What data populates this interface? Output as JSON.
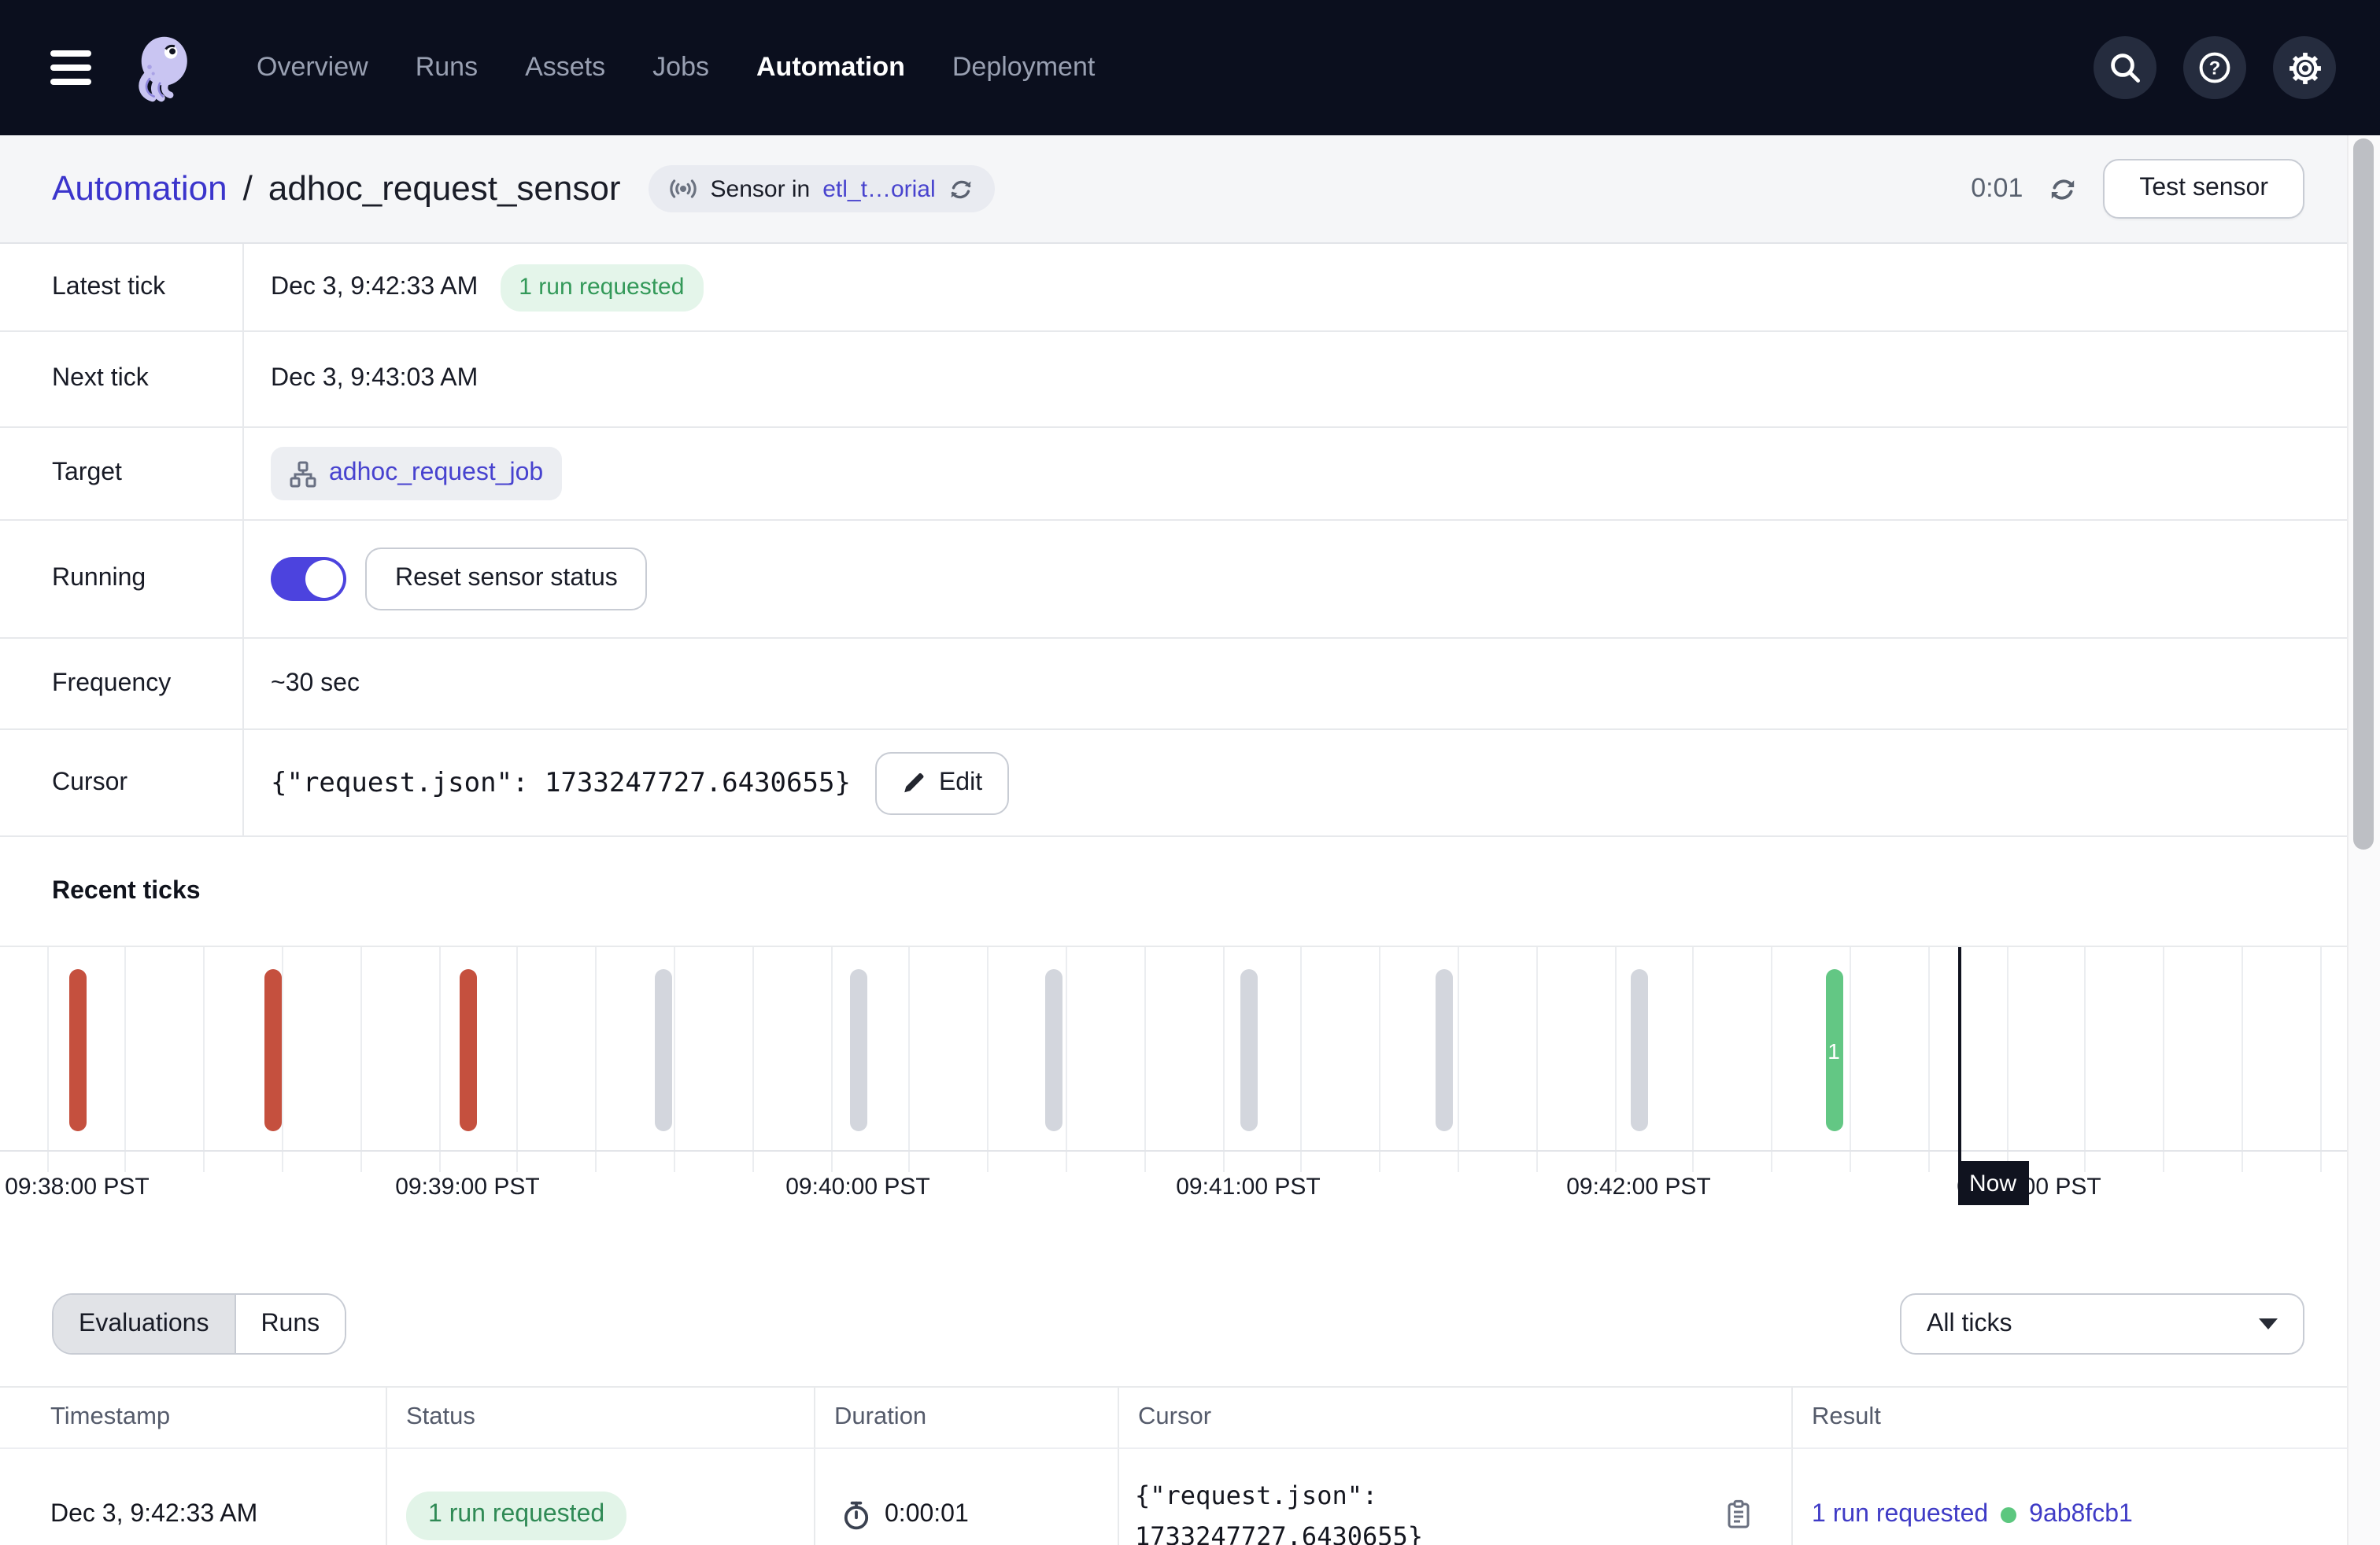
{
  "nav": {
    "items": [
      {
        "label": "Overview",
        "active": false
      },
      {
        "label": "Runs",
        "active": false
      },
      {
        "label": "Assets",
        "active": false
      },
      {
        "label": "Jobs",
        "active": false
      },
      {
        "label": "Automation",
        "active": true
      },
      {
        "label": "Deployment",
        "active": false
      }
    ]
  },
  "breadcrumb": {
    "section": "Automation",
    "separator": "/",
    "title": "adhoc_request_sensor",
    "badge": {
      "prefix": "Sensor in",
      "location": "etl_t…orial"
    }
  },
  "toolbar": {
    "timer": "0:01",
    "test_button": "Test sensor"
  },
  "details": {
    "latest_tick": {
      "label": "Latest tick",
      "value": "Dec 3, 9:42:33 AM",
      "badge": "1 run requested"
    },
    "next_tick": {
      "label": "Next tick",
      "value": "Dec 3, 9:43:03 AM"
    },
    "target": {
      "label": "Target",
      "job": "adhoc_request_job"
    },
    "running": {
      "label": "Running",
      "toggle_on": true,
      "reset_button": "Reset sensor status"
    },
    "frequency": {
      "label": "Frequency",
      "value": "~30 sec"
    },
    "cursor": {
      "label": "Cursor",
      "value": "{\"request.json\": 1733247727.6430655}",
      "edit_button": "Edit"
    }
  },
  "recent_ticks": {
    "title": "Recent ticks"
  },
  "chart_data": {
    "type": "bar",
    "title": "Recent ticks",
    "x_tick_labels": [
      "09:38:00 PST",
      "09:39:00 PST",
      "09:40:00 PST",
      "09:41:00 PST",
      "09:42:00 PST",
      "09:43:00 PST"
    ],
    "bars": [
      {
        "time": "09:38:00",
        "status": "failed"
      },
      {
        "time": "09:38:30",
        "status": "failed"
      },
      {
        "time": "09:39:00",
        "status": "failed"
      },
      {
        "time": "09:39:30",
        "status": "skipped"
      },
      {
        "time": "09:40:00",
        "status": "skipped"
      },
      {
        "time": "09:40:30",
        "status": "skipped"
      },
      {
        "time": "09:41:00",
        "status": "skipped"
      },
      {
        "time": "09:41:30",
        "status": "skipped"
      },
      {
        "time": "09:42:00",
        "status": "skipped"
      },
      {
        "time": "09:42:30",
        "status": "success",
        "count_label": "1"
      }
    ],
    "now_label": "Now",
    "status_colors": {
      "failed": "#C5503E",
      "skipped": "#D3D6DD",
      "success": "#63C784"
    },
    "legend": "none",
    "grid": "vertical"
  },
  "tabs": {
    "evaluations": "Evaluations",
    "runs": "Runs",
    "selected": "Evaluations"
  },
  "filter": {
    "all_ticks": "All ticks"
  },
  "table": {
    "columns": [
      "Timestamp",
      "Status",
      "Duration",
      "Cursor",
      "Result"
    ],
    "rows": [
      {
        "timestamp": "Dec 3, 9:42:33 AM",
        "status": "1 run requested",
        "duration": "0:00:01",
        "cursor_line1": "{\"request.json\":",
        "cursor_line2": "1733247727.6430655}",
        "result_text": "1 run requested",
        "result_run_id": "9ab8fcb1"
      }
    ]
  },
  "colors": {
    "nav_bg": "#0B0F1E",
    "accent_indigo": "#4C43DE",
    "link": "#4340CE",
    "tick_failed": "#C5503E",
    "tick_skipped": "#D3D6DD",
    "tick_success": "#63C784",
    "success_pill_bg": "#E2F4E8",
    "success_pill_text": "#2F8A55",
    "now_marker": "#10131F"
  }
}
